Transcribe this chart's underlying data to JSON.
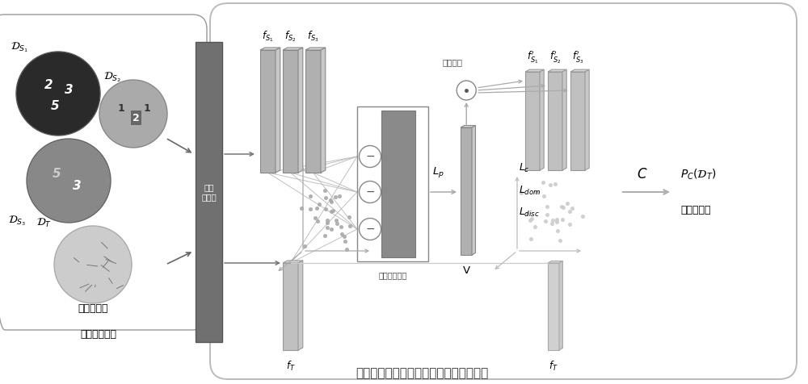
{
  "bg_color": "#ffffff",
  "title": "基于部分特征对齐的多源领域自适应框架",
  "title_fontsize": 11,
  "label_source_images": "多个源域图像",
  "label_target_images": "目标域图像",
  "label_feature_extractor": "特征\n提取器",
  "label_feature_selection": "特征筛选",
  "label_feature_select_module": "特征选择模块",
  "label_Lp": "$L_p$",
  "label_V": "V",
  "label_Lc": "$L_c$",
  "label_Ldom": "$L_{dom}$",
  "label_Ldisc": "$L_{disc}$",
  "label_C": "$C$",
  "label_classifier": "分类器预测",
  "label_PC": "$P_C(\\mathcal{D}_T)$",
  "label_fS1": "$f_{S_1}$",
  "label_fS2": "$f_{S_2}$",
  "label_fS3": "$f_{S_3}$",
  "label_fS1p": "$f^{\\prime}_{S_1}$",
  "label_fS2p": "$f^{\\prime}_{S_2}$",
  "label_fS3p": "$f^{\\prime}_{S_3}$",
  "label_fT": "$f_T$",
  "label_DS1": "$\\mathcal{D}_{S_1}$",
  "label_DS2": "$\\mathcal{D}_{S_2}$",
  "label_DS3": "$\\mathcal{D}_{S_3}$",
  "label_DT": "$\\mathcal{D}_T$"
}
